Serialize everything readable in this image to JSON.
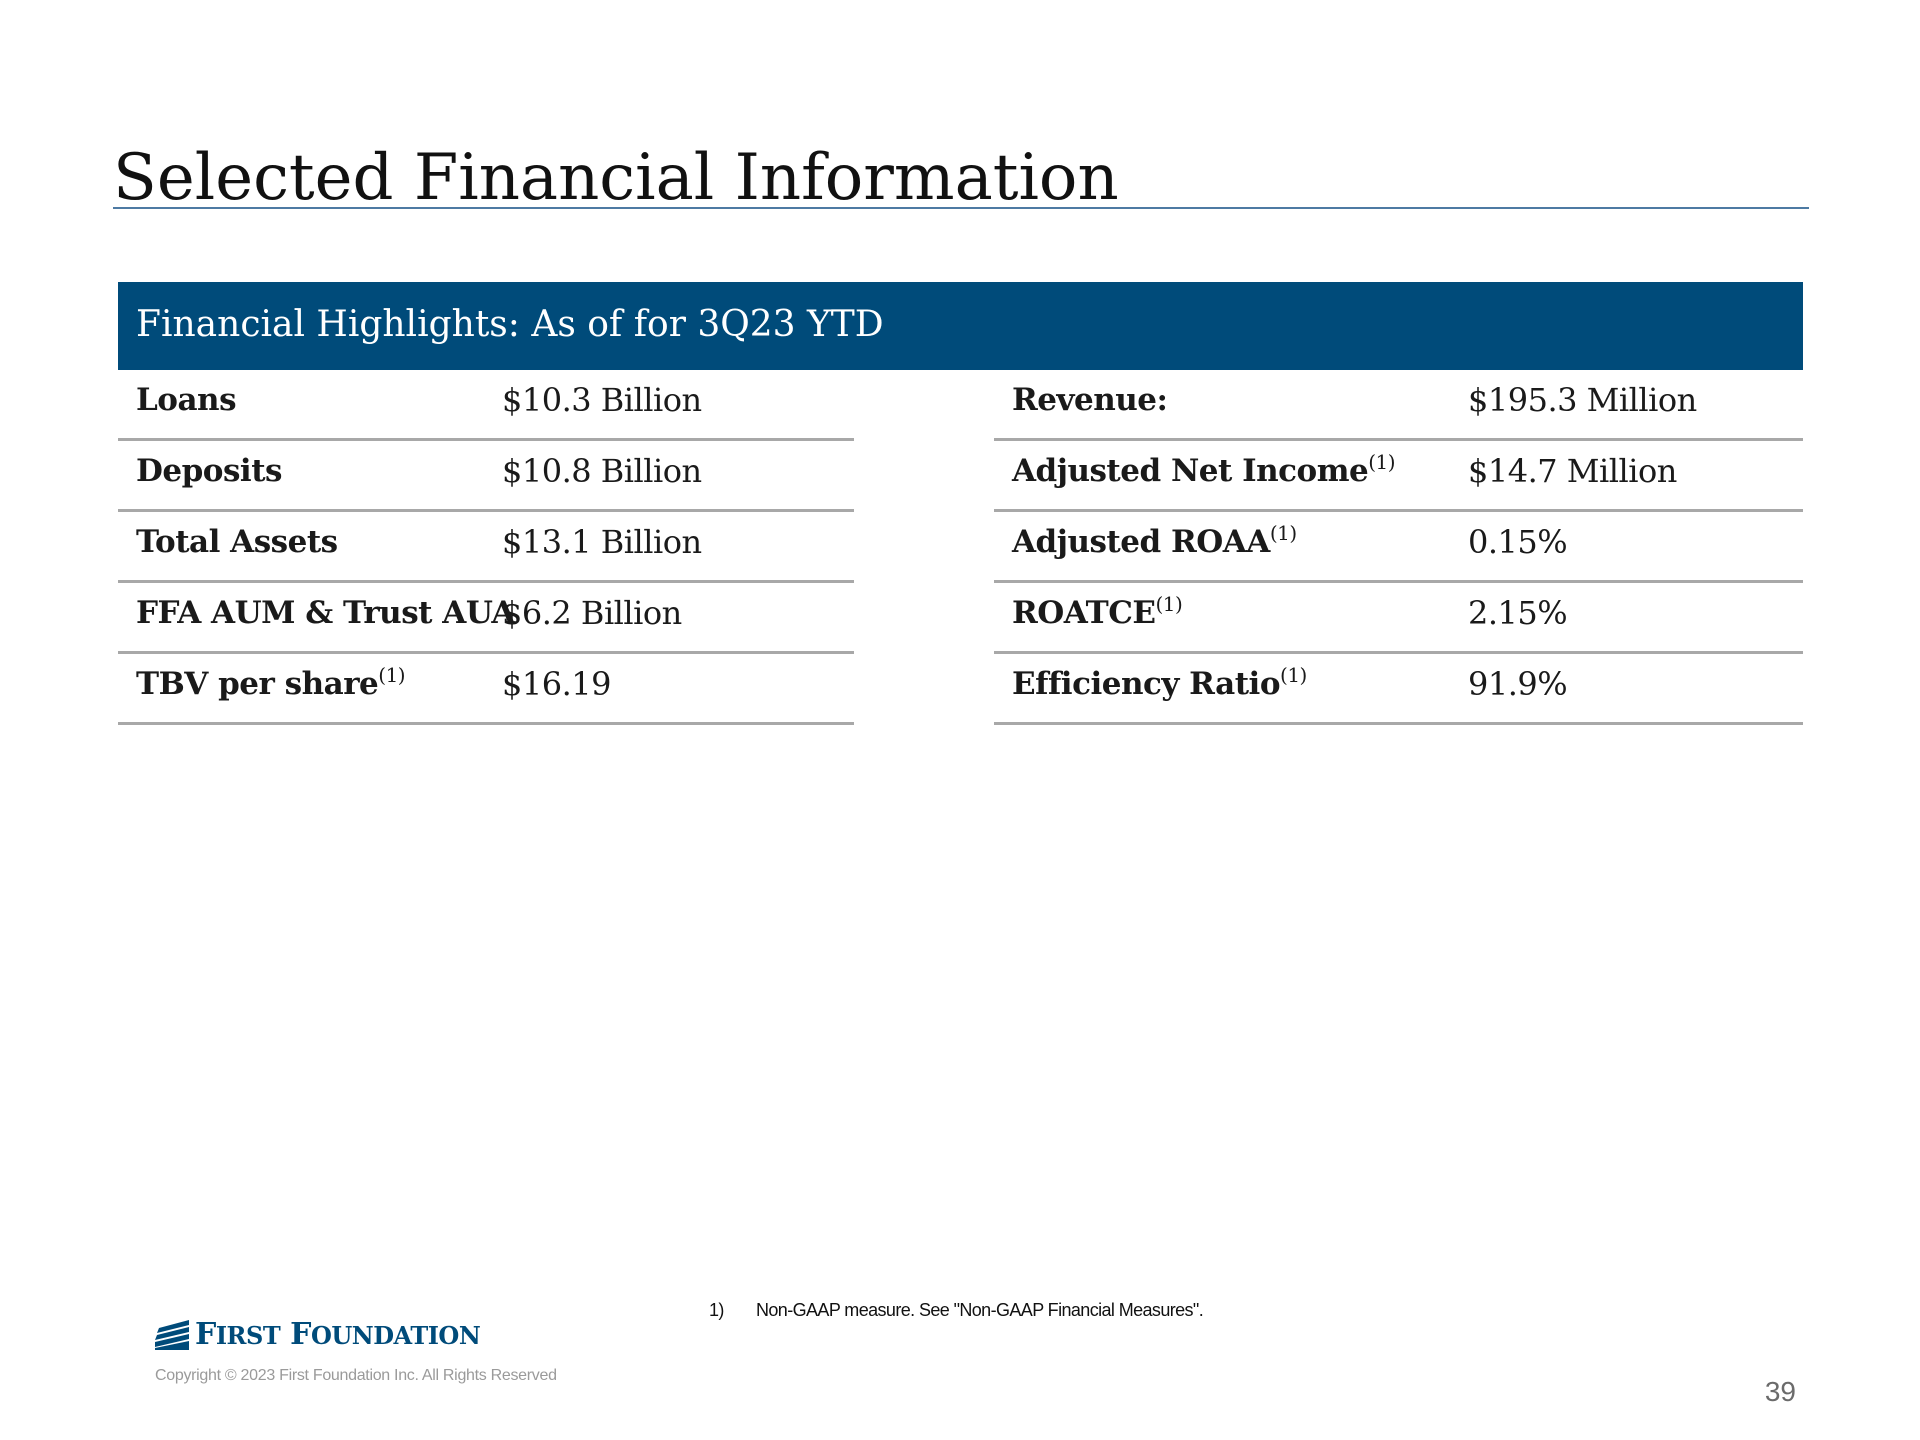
{
  "title": "Selected Financial Information",
  "banner": "Financial Highlights: As of for 3Q23 YTD",
  "left_table": [
    {
      "label": "Loans",
      "sup": "",
      "value": "$10.3 Billion"
    },
    {
      "label": "Deposits",
      "sup": "",
      "value": "$10.8 Billion"
    },
    {
      "label": "Total Assets",
      "sup": "",
      "value": "$13.1 Billion"
    },
    {
      "label": "FFA AUM & Trust AUA",
      "sup": "",
      "value": "$6.2 Billion"
    },
    {
      "label": "TBV per share",
      "sup": "(1)",
      "value": "$16.19"
    }
  ],
  "right_table": [
    {
      "label": "Revenue:",
      "sup": "",
      "value": "$195.3 Million"
    },
    {
      "label": "Adjusted Net Income",
      "sup": "(1)",
      "value": "$14.7 Million"
    },
    {
      "label": "Adjusted ROAA",
      "sup": "(1)",
      "value": "0.15%"
    },
    {
      "label": "ROATCE",
      "sup": "(1)",
      "value": "2.15%"
    },
    {
      "label": "Efficiency Ratio",
      "sup": "(1)",
      "value": "91.9%"
    }
  ],
  "footnote": {
    "number": "1)",
    "text": "Non-GAAP measure. See \"Non-GAAP Financial Measures\"."
  },
  "logo": {
    "first_cap": "F",
    "first_rest": "IRST",
    "second_cap": "F",
    "second_rest": "OUNDATION",
    "icon": "flag-stripes-icon"
  },
  "copyright": "Copyright © 2023 First Foundation Inc. All Rights Reserved",
  "page_number": "39",
  "colors": {
    "brand_navy": "#004b7a",
    "rule_gray": "#a8a8a8"
  }
}
